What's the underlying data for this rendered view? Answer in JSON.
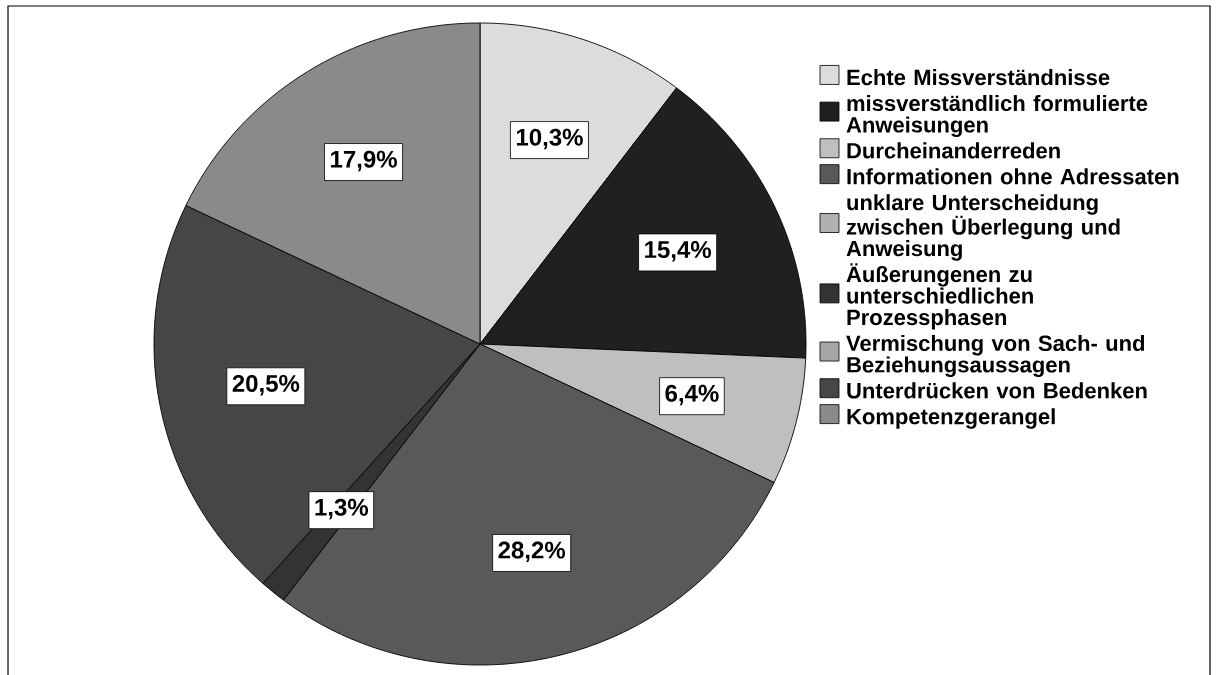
{
  "chart_data": {
    "type": "pie",
    "categories": [
      "Echte Missverständnisse",
      "missverständlich formulierte Anweisungen",
      "Durcheinanderreden",
      "Informationen ohne Adressaten",
      "unklare Unterscheidung zwischen Überlegung und Anweisung",
      "Äußerungenen zu unterschiedlichen Prozessphasen",
      "Vermischung von Sach- und Beziehungsaussagen",
      "Unterdrücken von Bedenken",
      "Kompetenzgerangel"
    ],
    "values": [
      10.3,
      15.4,
      6.4,
      28.2,
      0,
      1.3,
      0,
      20.5,
      17.9
    ],
    "colors": [
      "#dcdcdc",
      "#202020",
      "#bfbfbf",
      "#595959",
      "#b0b0b0",
      "#333333",
      "#a6a6a6",
      "#464646",
      "#8a8a8a"
    ],
    "value_labels": [
      "10,3%",
      "15,4%",
      "6,4%",
      "28,2%",
      null,
      "1,3%",
      null,
      "20,5%",
      "17,9%"
    ],
    "legend": "right"
  }
}
